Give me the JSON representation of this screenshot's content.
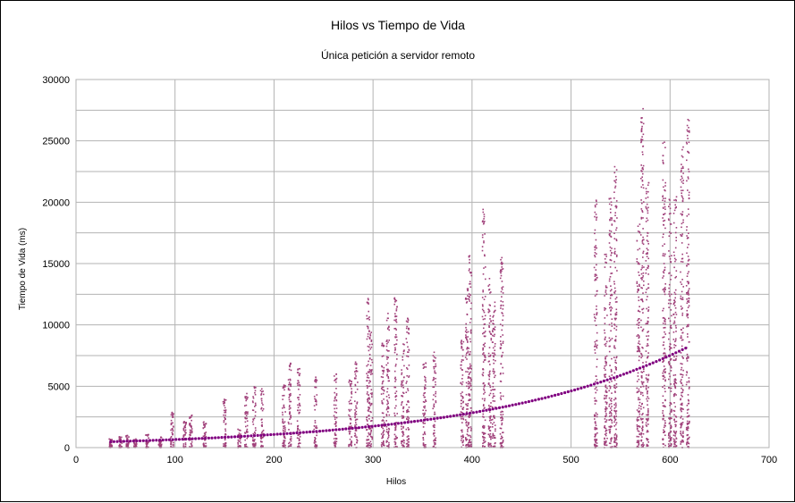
{
  "chart_data": {
    "type": "scatter",
    "title": "Hilos vs Tiempo de Vida",
    "subtitle": "Única petición a servidor remoto",
    "xlabel": "Hilos",
    "ylabel": "Tiempo de Vida (ms)",
    "xlim": [
      0,
      700
    ],
    "ylim": [
      0,
      30000
    ],
    "x_ticks": [
      0,
      100,
      200,
      300,
      400,
      500,
      600,
      700
    ],
    "y_ticks": [
      0,
      5000,
      10000,
      15000,
      20000,
      25000,
      30000
    ],
    "grid": true,
    "legend": "none",
    "colors": {
      "points": "#a0407a",
      "trend": "#800080",
      "grid": "#b3b3b3"
    },
    "trendline": {
      "kind": "exponential",
      "x": [
        35,
        618
      ],
      "y": [
        480,
        8200
      ]
    },
    "point_clusters": [
      {
        "x": 35,
        "max": 700
      },
      {
        "x": 45,
        "max": 900
      },
      {
        "x": 52,
        "max": 1000
      },
      {
        "x": 60,
        "max": 700
      },
      {
        "x": 72,
        "max": 1100
      },
      {
        "x": 85,
        "max": 900
      },
      {
        "x": 97,
        "max": 2900
      },
      {
        "x": 110,
        "max": 2200
      },
      {
        "x": 116,
        "max": 2700
      },
      {
        "x": 130,
        "max": 2100
      },
      {
        "x": 150,
        "max": 4000
      },
      {
        "x": 165,
        "max": 1500
      },
      {
        "x": 172,
        "max": 4500
      },
      {
        "x": 180,
        "max": 5000
      },
      {
        "x": 188,
        "max": 4800
      },
      {
        "x": 210,
        "max": 5200
      },
      {
        "x": 216,
        "max": 6900
      },
      {
        "x": 225,
        "max": 6500
      },
      {
        "x": 242,
        "max": 5800
      },
      {
        "x": 262,
        "max": 6000
      },
      {
        "x": 277,
        "max": 5500
      },
      {
        "x": 283,
        "max": 7000
      },
      {
        "x": 295,
        "max": 12400
      },
      {
        "x": 298,
        "max": 9500
      },
      {
        "x": 310,
        "max": 8500
      },
      {
        "x": 315,
        "max": 11000
      },
      {
        "x": 323,
        "max": 12200
      },
      {
        "x": 330,
        "max": 8700
      },
      {
        "x": 335,
        "max": 10600
      },
      {
        "x": 352,
        "max": 7000
      },
      {
        "x": 362,
        "max": 8000
      },
      {
        "x": 390,
        "max": 9000
      },
      {
        "x": 395,
        "max": 13000
      },
      {
        "x": 398,
        "max": 15700
      },
      {
        "x": 412,
        "max": 19800
      },
      {
        "x": 418,
        "max": 14000
      },
      {
        "x": 422,
        "max": 12000
      },
      {
        "x": 430,
        "max": 15600
      },
      {
        "x": 525,
        "max": 20400
      },
      {
        "x": 535,
        "max": 16000
      },
      {
        "x": 540,
        "max": 20500
      },
      {
        "x": 545,
        "max": 23300
      },
      {
        "x": 568,
        "max": 18500
      },
      {
        "x": 572,
        "max": 27800
      },
      {
        "x": 577,
        "max": 22000
      },
      {
        "x": 594,
        "max": 25100
      },
      {
        "x": 600,
        "max": 20300
      },
      {
        "x": 605,
        "max": 20500
      },
      {
        "x": 612,
        "max": 24500
      },
      {
        "x": 618,
        "max": 27200
      }
    ]
  }
}
